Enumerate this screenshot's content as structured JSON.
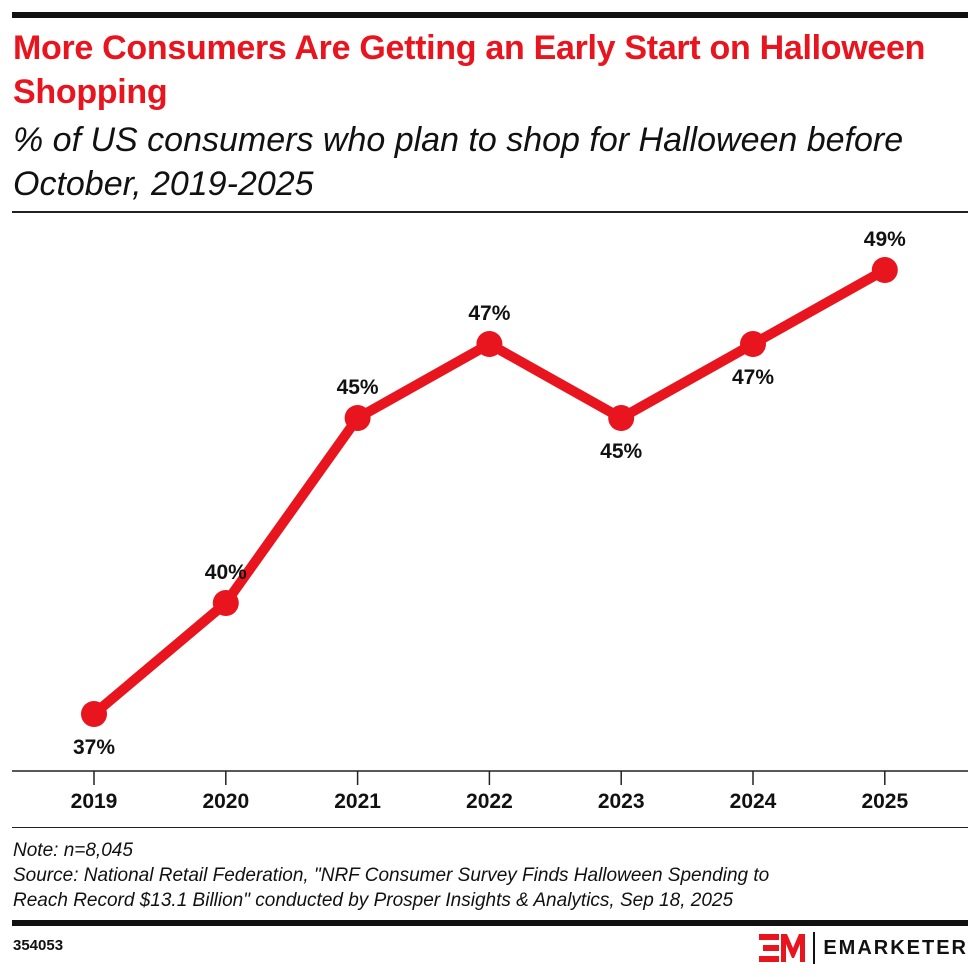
{
  "title": "More Consumers Are Getting an Early Start on Halloween Shopping",
  "subtitle": "% of US consumers who plan to shop for Halloween before October, 2019-2025",
  "chart_data": {
    "type": "line",
    "categories": [
      "2019",
      "2020",
      "2021",
      "2022",
      "2023",
      "2024",
      "2025"
    ],
    "values": [
      37,
      40,
      45,
      47,
      45,
      47,
      49
    ],
    "data_labels": [
      "37%",
      "40%",
      "45%",
      "47%",
      "45%",
      "47%",
      "49%"
    ],
    "ylim": [
      35.5,
      50.5
    ],
    "grid": false,
    "color": "#e8141e"
  },
  "notes": {
    "note": "Note: n=8,045",
    "source_line1": "Source: National Retail Federation, \"NRF Consumer Survey Finds Halloween Spending to",
    "source_line2": "Reach Record $13.1 Billion\" conducted by Prosper Insights & Analytics, Sep 18, 2025"
  },
  "footer": {
    "chart_id": "354053",
    "brand": "EMARKETER",
    "brand_mark": "EM"
  }
}
